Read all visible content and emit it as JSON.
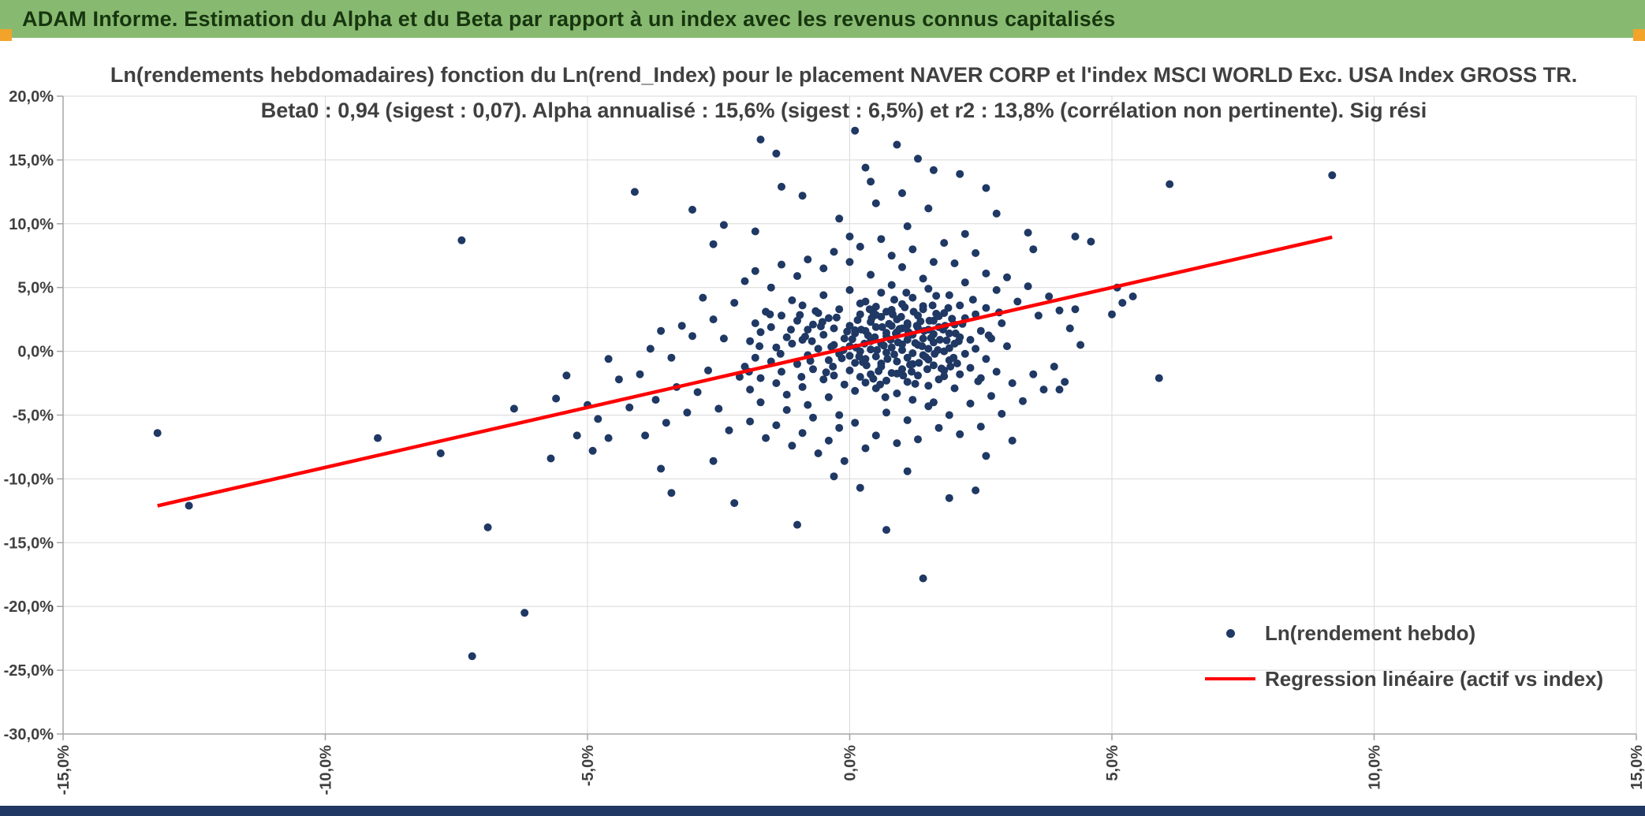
{
  "header": {
    "title": "ADAM Informe. Estimation du Alpha et du Beta par rapport à un index avec les revenus connus capitalisés",
    "bg_color": "#87ba70",
    "text_color": "#17350f"
  },
  "decorations": {
    "corner_marker_color": "#f3a32a",
    "bottom_bar_color": "#1f3864"
  },
  "chart_data": {
    "type": "scatter",
    "title_line1": "Ln(rendements hebdomadaires) fonction du Ln(rend_Index) pour le placement NAVER CORP et l'index MSCI WORLD Exc. USA Index GROSS TR.",
    "title_line2": "Beta0 : 0,94 (sigest : 0,07). Alpha annualisé : 15,6% (sigest : 6,5%) et r2 : 13,8% (corrélation non pertinente). Sig rési",
    "xlabel": "",
    "ylabel": "",
    "xlim": [
      -15,
      15
    ],
    "ylim": [
      -30,
      20
    ],
    "grid": true,
    "x_ticks": [
      "-15,0%",
      "-10,0%",
      "-5,0%",
      "0,0%",
      "5,0%",
      "10,0%",
      "15,0%"
    ],
    "x_tick_values": [
      -15,
      -10,
      -5,
      0,
      5,
      10,
      15
    ],
    "y_ticks": [
      "20,0%",
      "15,0%",
      "10,0%",
      "5,0%",
      "0,0%",
      "-5,0%",
      "-10,0%",
      "-15,0%",
      "-20,0%",
      "-25,0%",
      "-30,0%"
    ],
    "y_tick_values": [
      20,
      15,
      10,
      5,
      0,
      -5,
      -10,
      -15,
      -20,
      -25,
      -30
    ],
    "point_color": "#1F3864",
    "line_color": "#FF0000",
    "regression": {
      "beta": 0.94,
      "alpha_weekly_pct": 0.3,
      "x_start": -13.2,
      "x_end": 9.2
    },
    "legend": [
      {
        "label": "Ln(rendement hebdo)",
        "marker": "dot",
        "color": "#1F3864"
      },
      {
        "label": "Regression linéaire (actif vs index)",
        "marker": "line",
        "color": "#FF0000"
      }
    ],
    "legend_position": "bottom-right",
    "points": [
      [
        -2.0,
        -1.2
      ],
      [
        -1.9,
        0.8
      ],
      [
        -1.9,
        -3.0
      ],
      [
        -1.8,
        2.2
      ],
      [
        -1.8,
        -0.5
      ],
      [
        -1.7,
        1.5
      ],
      [
        -1.7,
        -2.1
      ],
      [
        -1.6,
        3.1
      ],
      [
        -1.5,
        -0.8
      ],
      [
        -1.5,
        1.9
      ],
      [
        -1.4,
        -2.5
      ],
      [
        -1.4,
        0.3
      ],
      [
        -1.3,
        2.8
      ],
      [
        -1.3,
        -1.6
      ],
      [
        -1.2,
        1.1
      ],
      [
        -1.2,
        -3.4
      ],
      [
        -1.1,
        0.6
      ],
      [
        -1.1,
        4.0
      ],
      [
        -1.0,
        -1.0
      ],
      [
        -1.0,
        2.4
      ],
      [
        -0.9,
        -2.8
      ],
      [
        -0.9,
        0.9
      ],
      [
        -0.9,
        3.6
      ],
      [
        -0.8,
        -0.3
      ],
      [
        -0.8,
        1.7
      ],
      [
        -0.8,
        -4.2
      ],
      [
        -0.7,
        2.1
      ],
      [
        -0.7,
        -1.4
      ],
      [
        -0.6,
        0.2
      ],
      [
        -0.6,
        3.0
      ],
      [
        -0.5,
        -2.2
      ],
      [
        -0.5,
        1.3
      ],
      [
        -0.5,
        4.4
      ],
      [
        -0.4,
        -0.7
      ],
      [
        -0.4,
        2.6
      ],
      [
        -0.4,
        -3.6
      ],
      [
        -0.3,
        0.5
      ],
      [
        -0.3,
        1.8
      ],
      [
        -0.3,
        -1.9
      ],
      [
        -0.2,
        3.3
      ],
      [
        -0.2,
        -0.2
      ],
      [
        -0.2,
        -5.0
      ],
      [
        -0.1,
        1.0
      ],
      [
        -0.1,
        -2.6
      ],
      [
        0.0,
        0.4
      ],
      [
        0.0,
        2.0
      ],
      [
        0.0,
        -1.5
      ],
      [
        0.0,
        4.8
      ],
      [
        0.1,
        -0.9
      ],
      [
        0.1,
        1.4
      ],
      [
        0.1,
        -3.1
      ],
      [
        0.2,
        2.9
      ],
      [
        0.2,
        0.0
      ],
      [
        0.2,
        -2.0
      ],
      [
        0.3,
        1.6
      ],
      [
        0.3,
        -0.6
      ],
      [
        0.3,
        3.9
      ],
      [
        0.4,
        -1.8
      ],
      [
        0.4,
        0.8
      ],
      [
        0.4,
        2.3
      ],
      [
        0.5,
        -0.4
      ],
      [
        0.5,
        1.9
      ],
      [
        0.5,
        -2.9
      ],
      [
        0.5,
        3.5
      ],
      [
        0.6,
        0.6
      ],
      [
        0.6,
        -1.2
      ],
      [
        0.6,
        2.7
      ],
      [
        0.6,
        4.6
      ],
      [
        0.7,
        -0.1
      ],
      [
        0.7,
        1.2
      ],
      [
        0.7,
        -2.3
      ],
      [
        0.7,
        3.1
      ],
      [
        0.8,
        0.3
      ],
      [
        0.8,
        -1.7
      ],
      [
        0.8,
        2.0
      ],
      [
        0.8,
        5.2
      ],
      [
        0.9,
        -0.8
      ],
      [
        0.9,
        1.5
      ],
      [
        0.9,
        -3.3
      ],
      [
        0.9,
        2.5
      ],
      [
        1.0,
        0.1
      ],
      [
        1.0,
        -1.4
      ],
      [
        1.0,
        3.7
      ],
      [
        1.0,
        1.8
      ],
      [
        1.1,
        -0.5
      ],
      [
        1.1,
        2.2
      ],
      [
        1.1,
        -2.4
      ],
      [
        1.1,
        0.9
      ],
      [
        1.2,
        4.2
      ],
      [
        1.2,
        -1.0
      ],
      [
        1.2,
        1.3
      ],
      [
        1.2,
        -3.8
      ],
      [
        1.3,
        0.5
      ],
      [
        1.3,
        2.8
      ],
      [
        1.3,
        -1.9
      ],
      [
        1.4,
        1.0
      ],
      [
        1.4,
        -0.3
      ],
      [
        1.4,
        3.3
      ],
      [
        1.5,
        -2.7
      ],
      [
        1.5,
        1.7
      ],
      [
        1.5,
        0.2
      ],
      [
        1.5,
        4.9
      ],
      [
        1.6,
        -1.1
      ],
      [
        1.6,
        2.4
      ],
      [
        1.6,
        -4.0
      ],
      [
        1.6,
        0.7
      ],
      [
        1.7,
        1.9
      ],
      [
        1.7,
        -2.2
      ],
      [
        1.8,
        0.0
      ],
      [
        1.8,
        3.0
      ],
      [
        1.8,
        -1.5
      ],
      [
        1.9,
        1.4
      ],
      [
        1.9,
        -0.7
      ],
      [
        1.9,
        4.4
      ],
      [
        2.0,
        2.1
      ],
      [
        2.0,
        -2.9
      ],
      [
        2.0,
        0.6
      ],
      [
        2.1,
        1.1
      ],
      [
        2.1,
        -1.8
      ],
      [
        2.1,
        3.6
      ],
      [
        2.2,
        -0.2
      ],
      [
        2.2,
        2.6
      ],
      [
        2.3,
        0.9
      ],
      [
        2.3,
        -1.3
      ],
      [
        2.4,
        2.9
      ],
      [
        2.4,
        0.2
      ],
      [
        2.5,
        -2.1
      ],
      [
        2.5,
        1.6
      ],
      [
        2.6,
        3.4
      ],
      [
        2.6,
        -0.6
      ],
      [
        2.7,
        1.0
      ],
      [
        2.8,
        -1.6
      ],
      [
        2.9,
        2.2
      ],
      [
        3.0,
        0.4
      ],
      [
        0.05,
        0.95
      ],
      [
        0.15,
        2.45
      ],
      [
        0.25,
        -0.85
      ],
      [
        0.35,
        1.25
      ],
      [
        0.45,
        3.05
      ],
      [
        0.55,
        -1.55
      ],
      [
        0.65,
        0.45
      ],
      [
        0.75,
        2.15
      ],
      [
        0.85,
        -0.25
      ],
      [
        0.95,
        1.75
      ],
      [
        1.05,
        3.45
      ],
      [
        1.15,
        -1.05
      ],
      [
        1.25,
        0.65
      ],
      [
        1.35,
        2.35
      ],
      [
        1.45,
        -0.45
      ],
      [
        1.55,
        1.05
      ],
      [
        1.65,
        2.95
      ],
      [
        1.75,
        -1.35
      ],
      [
        1.85,
        0.85
      ],
      [
        1.95,
        2.55
      ],
      [
        0.0,
        -0.35
      ],
      [
        0.1,
        1.65
      ],
      [
        0.2,
        3.75
      ],
      [
        0.3,
        -2.45
      ],
      [
        0.4,
        0.15
      ],
      [
        0.5,
        2.85
      ],
      [
        0.6,
        -0.95
      ],
      [
        0.7,
        1.45
      ],
      [
        0.8,
        3.25
      ],
      [
        0.9,
        -1.75
      ],
      [
        1.0,
        0.55
      ],
      [
        1.1,
        2.05
      ],
      [
        1.2,
        -0.15
      ],
      [
        1.3,
        1.85
      ],
      [
        1.4,
        3.55
      ],
      [
        1.5,
        -0.65
      ],
      [
        1.6,
        1.35
      ],
      [
        1.7,
        2.75
      ],
      [
        1.8,
        -1.95
      ],
      [
        1.9,
        0.25
      ],
      [
        -0.05,
        1.55
      ],
      [
        -0.15,
        -0.55
      ],
      [
        -0.25,
        2.65
      ],
      [
        -0.35,
        0.35
      ],
      [
        -0.45,
        -1.65
      ],
      [
        -0.55,
        1.95
      ],
      [
        -0.65,
        3.15
      ],
      [
        -0.75,
        -0.75
      ],
      [
        -0.85,
        1.15
      ],
      [
        -0.95,
        2.85
      ],
      [
        0.45,
        -2.15
      ],
      [
        0.85,
        4.05
      ],
      [
        1.25,
        -2.55
      ],
      [
        1.65,
        4.35
      ],
      [
        2.05,
        -0.95
      ],
      [
        2.15,
        2.15
      ],
      [
        2.35,
        4.05
      ],
      [
        2.45,
        -2.35
      ],
      [
        2.65,
        1.25
      ],
      [
        2.85,
        3.05
      ],
      [
        0.12,
        0.3
      ],
      [
        0.22,
        1.7
      ],
      [
        0.32,
        -1.1
      ],
      [
        0.42,
        2.6
      ],
      [
        0.52,
        0.1
      ],
      [
        0.62,
        1.9
      ],
      [
        0.72,
        -0.6
      ],
      [
        0.82,
        2.9
      ],
      [
        0.92,
        0.7
      ],
      [
        1.02,
        -1.9
      ],
      [
        1.12,
        1.5
      ],
      [
        1.22,
        3.1
      ],
      [
        1.32,
        -0.9
      ],
      [
        1.42,
        1.6
      ],
      [
        1.52,
        2.4
      ],
      [
        1.62,
        -0.2
      ],
      [
        1.72,
        0.9
      ],
      [
        1.82,
        2.0
      ],
      [
        1.92,
        -1.2
      ],
      [
        2.02,
        1.4
      ],
      [
        0.18,
        -0.4
      ],
      [
        0.38,
        3.3
      ],
      [
        0.58,
        -2.6
      ],
      [
        0.78,
        0.9
      ],
      [
        0.98,
        2.7
      ],
      [
        1.18,
        -1.6
      ],
      [
        1.38,
        0.4
      ],
      [
        1.58,
        3.6
      ],
      [
        1.78,
        1.7
      ],
      [
        1.98,
        -0.5
      ],
      [
        0.28,
        0.6
      ],
      [
        0.48,
        1.1
      ],
      [
        0.68,
        -3.6
      ],
      [
        0.88,
        1.4
      ],
      [
        1.08,
        4.6
      ],
      [
        1.28,
        2.0
      ],
      [
        1.48,
        -1.4
      ],
      [
        1.68,
        0.1
      ],
      [
        1.88,
        3.4
      ],
      [
        2.08,
        0.8
      ],
      [
        -0.12,
        0.1
      ],
      [
        -0.32,
        -1.2
      ],
      [
        -0.52,
        2.3
      ],
      [
        -0.72,
        0.8
      ],
      [
        -0.92,
        -2.0
      ],
      [
        -1.12,
        1.7
      ],
      [
        -1.32,
        -0.2
      ],
      [
        -1.52,
        2.9
      ],
      [
        -1.72,
        0.4
      ],
      [
        -1.92,
        -1.6
      ],
      [
        -2.5,
        -4.5
      ],
      [
        -2.4,
        1.0
      ],
      [
        -2.3,
        -6.2
      ],
      [
        -2.2,
        3.8
      ],
      [
        -2.1,
        -2.0
      ],
      [
        -2.0,
        5.5
      ],
      [
        -1.9,
        -5.5
      ],
      [
        -1.8,
        6.3
      ],
      [
        -1.7,
        -4.0
      ],
      [
        -1.6,
        -6.8
      ],
      [
        -1.5,
        5.0
      ],
      [
        -1.4,
        -5.8
      ],
      [
        -1.3,
        6.8
      ],
      [
        -1.2,
        -4.6
      ],
      [
        -1.1,
        -7.4
      ],
      [
        -1.0,
        5.9
      ],
      [
        -0.9,
        -6.4
      ],
      [
        -0.8,
        7.2
      ],
      [
        -0.7,
        -5.2
      ],
      [
        -0.6,
        -8.0
      ],
      [
        -0.5,
        6.5
      ],
      [
        -0.4,
        -7.0
      ],
      [
        -0.3,
        7.8
      ],
      [
        -0.2,
        -6.0
      ],
      [
        -0.1,
        -8.6
      ],
      [
        0.0,
        7.0
      ],
      [
        0.1,
        -5.6
      ],
      [
        0.2,
        8.2
      ],
      [
        0.3,
        -7.6
      ],
      [
        0.4,
        6.0
      ],
      [
        0.5,
        -6.6
      ],
      [
        0.6,
        8.8
      ],
      [
        0.7,
        -4.8
      ],
      [
        0.8,
        7.5
      ],
      [
        0.9,
        -7.2
      ],
      [
        1.0,
        6.6
      ],
      [
        1.1,
        -5.4
      ],
      [
        1.2,
        8.0
      ],
      [
        1.3,
        -6.9
      ],
      [
        1.4,
        5.7
      ],
      [
        1.5,
        -4.3
      ],
      [
        1.6,
        7.0
      ],
      [
        1.7,
        -6.0
      ],
      [
        1.8,
        8.5
      ],
      [
        1.9,
        -5.0
      ],
      [
        2.0,
        6.9
      ],
      [
        2.1,
        -6.5
      ],
      [
        2.2,
        5.4
      ],
      [
        2.3,
        -4.1
      ],
      [
        2.4,
        7.7
      ],
      [
        2.5,
        -5.9
      ],
      [
        2.6,
        6.1
      ],
      [
        2.7,
        -3.5
      ],
      [
        2.8,
        4.8
      ],
      [
        2.9,
        -4.9
      ],
      [
        3.0,
        5.8
      ],
      [
        3.1,
        -2.5
      ],
      [
        3.2,
        3.9
      ],
      [
        3.3,
        -3.9
      ],
      [
        3.4,
        5.1
      ],
      [
        3.5,
        -1.8
      ],
      [
        3.6,
        2.8
      ],
      [
        3.7,
        -3.0
      ],
      [
        3.8,
        4.3
      ],
      [
        3.9,
        -1.2
      ],
      [
        4.0,
        3.2
      ],
      [
        4.1,
        -2.4
      ],
      [
        4.2,
        1.8
      ],
      [
        4.3,
        9.0
      ],
      [
        4.4,
        0.5
      ],
      [
        -2.6,
        2.5
      ],
      [
        -2.7,
        -1.5
      ],
      [
        -2.8,
        4.2
      ],
      [
        -2.9,
        -3.2
      ],
      [
        -3.0,
        1.2
      ],
      [
        -3.1,
        -4.8
      ],
      [
        -3.2,
        2.0
      ],
      [
        -3.3,
        -2.8
      ],
      [
        -3.4,
        -0.5
      ],
      [
        -3.5,
        -5.6
      ],
      [
        -3.6,
        1.6
      ],
      [
        -3.7,
        -3.8
      ],
      [
        -3.8,
        0.2
      ],
      [
        -3.9,
        -6.6
      ],
      [
        -4.0,
        -1.8
      ],
      [
        -4.2,
        -4.4
      ],
      [
        -4.4,
        -2.2
      ],
      [
        -4.6,
        -6.8
      ],
      [
        -4.8,
        -5.3
      ],
      [
        -5.0,
        -4.2
      ],
      [
        -13.2,
        -6.4
      ],
      [
        -12.6,
        -12.1
      ],
      [
        -9.0,
        -6.8
      ],
      [
        -7.8,
        -8.0
      ],
      [
        -7.4,
        8.7
      ],
      [
        -7.2,
        -23.9
      ],
      [
        -6.2,
        -20.5
      ],
      [
        -6.9,
        -13.8
      ],
      [
        1.4,
        -17.8
      ],
      [
        -6.4,
        -4.5
      ],
      [
        -5.7,
        -8.4
      ],
      [
        -5.6,
        -3.7
      ],
      [
        -5.2,
        -6.6
      ],
      [
        -5.4,
        -1.9
      ],
      [
        -4.9,
        -7.8
      ],
      [
        -4.6,
        -0.6
      ],
      [
        -3.4,
        -11.1
      ],
      [
        -2.2,
        -11.9
      ],
      [
        -1.0,
        -13.6
      ],
      [
        0.2,
        -10.7
      ],
      [
        0.7,
        -14.0
      ],
      [
        1.9,
        -11.5
      ],
      [
        -3.6,
        -9.2
      ],
      [
        -2.6,
        -8.6
      ],
      [
        2.6,
        -8.2
      ],
      [
        3.1,
        -7.0
      ],
      [
        -0.3,
        -9.8
      ],
      [
        1.1,
        -9.4
      ],
      [
        2.4,
        -10.9
      ],
      [
        3.4,
        9.3
      ],
      [
        3.5,
        8.0
      ],
      [
        4.3,
        3.3
      ],
      [
        5.0,
        2.9
      ],
      [
        5.2,
        3.8
      ],
      [
        5.4,
        4.3
      ],
      [
        5.1,
        5.0
      ],
      [
        5.9,
        -2.1
      ],
      [
        4.0,
        -3.0
      ],
      [
        4.6,
        8.6
      ],
      [
        -1.7,
        16.6
      ],
      [
        -1.4,
        15.5
      ],
      [
        0.1,
        17.3
      ],
      [
        0.3,
        14.4
      ],
      [
        0.9,
        16.2
      ],
      [
        1.3,
        15.1
      ],
      [
        1.6,
        14.2
      ],
      [
        2.6,
        12.8
      ],
      [
        6.1,
        13.1
      ],
      [
        9.2,
        13.8
      ],
      [
        -4.1,
        12.5
      ],
      [
        -3.0,
        11.1
      ],
      [
        -2.4,
        9.9
      ],
      [
        -1.3,
        12.9
      ],
      [
        -0.9,
        12.2
      ],
      [
        0.5,
        11.6
      ],
      [
        1.5,
        11.2
      ],
      [
        2.8,
        10.8
      ],
      [
        -0.2,
        10.4
      ],
      [
        1.1,
        9.8
      ],
      [
        -1.8,
        9.4
      ],
      [
        2.2,
        9.2
      ],
      [
        0.0,
        9.0
      ],
      [
        -2.6,
        8.4
      ],
      [
        0.4,
        13.3
      ],
      [
        2.1,
        13.9
      ],
      [
        1.0,
        12.4
      ]
    ]
  }
}
